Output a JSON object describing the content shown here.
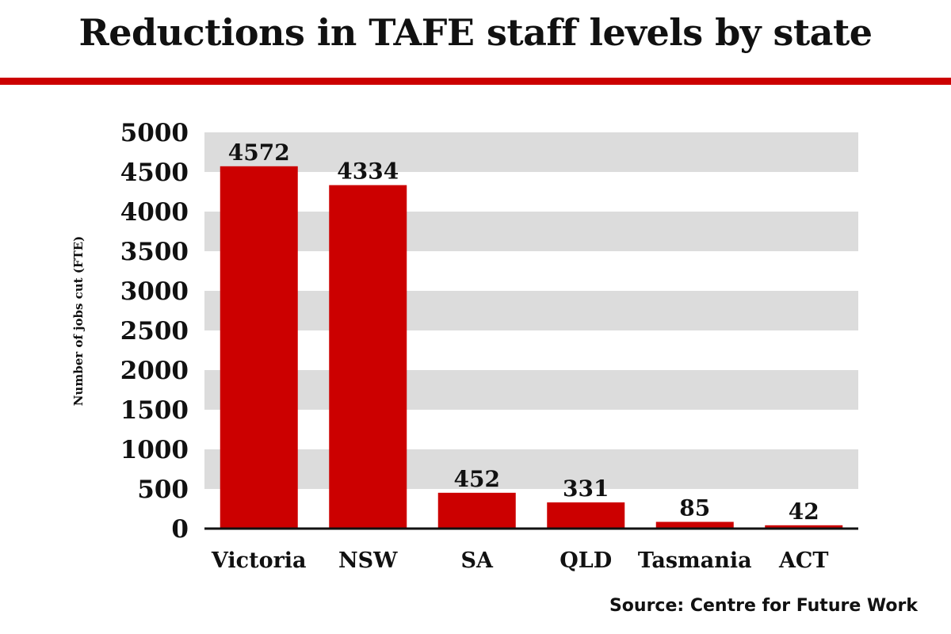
{
  "chart_data": {
    "type": "bar",
    "title": "Reductions in TAFE staff levels by state",
    "xlabel": "",
    "ylabel": "Number of jobs cut (FTE)",
    "categories": [
      "Victoria",
      "NSW",
      "SA",
      "QLD",
      "Tasmania",
      "ACT"
    ],
    "values": [
      4572,
      4334,
      452,
      331,
      85,
      42
    ],
    "data_labels": [
      "4572",
      "4334",
      "452",
      "331",
      "85",
      "42"
    ],
    "ylim": [
      0,
      5000
    ],
    "yticks": [
      "0",
      "500",
      "1000",
      "1500",
      "2000",
      "2500",
      "3000",
      "3500",
      "4000",
      "4500",
      "5000"
    ],
    "grid": "alternating horizontal bands",
    "source": "Source: Centre for Future Work",
    "colors": {
      "bar": "#cc0000",
      "band": "#dcdcdc",
      "rule": "#cc0000",
      "axis": "#111111"
    }
  }
}
